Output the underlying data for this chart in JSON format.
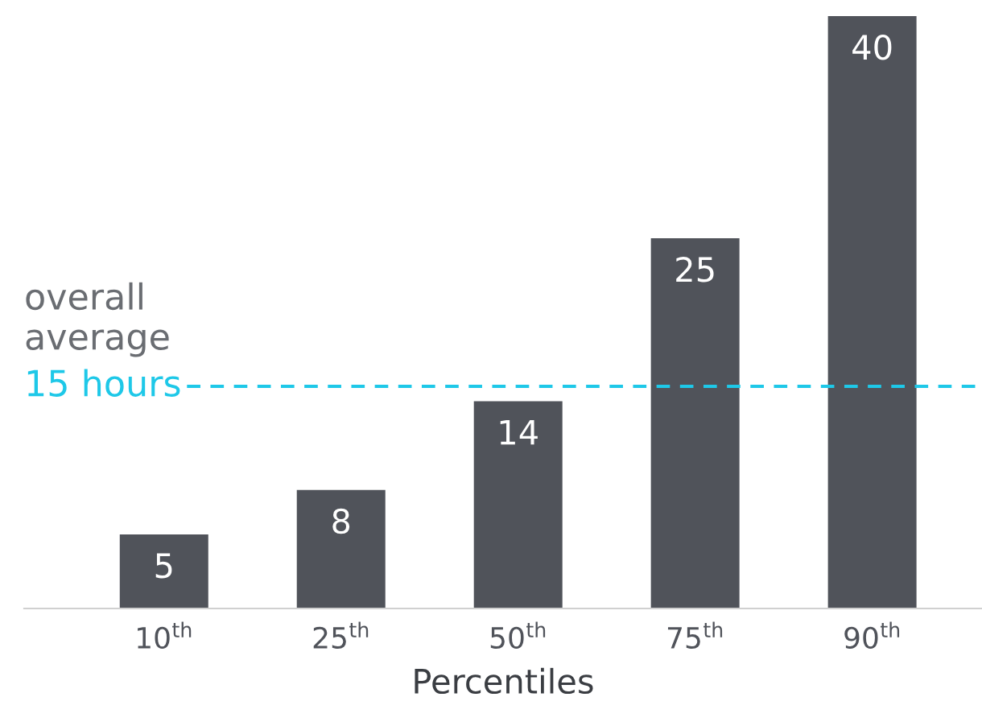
{
  "chart_data": {
    "type": "bar",
    "xlabel": "Percentiles",
    "categories": [
      "10$^{th}$",
      "25$^{th}$",
      "50$^{th}$",
      "75$^{th}$",
      "90$^{th}$"
    ],
    "values": [
      5,
      8,
      14,
      25,
      40
    ],
    "color": "#50535a",
    "data_labels": true,
    "ref_lines": [
      {
        "axis": "y",
        "value": 15,
        "label": "15 hours",
        "color": "#1ec8e8",
        "line_style": "dashed"
      }
    ],
    "annotations": [
      "overall average"
    ],
    "grid": false
  }
}
